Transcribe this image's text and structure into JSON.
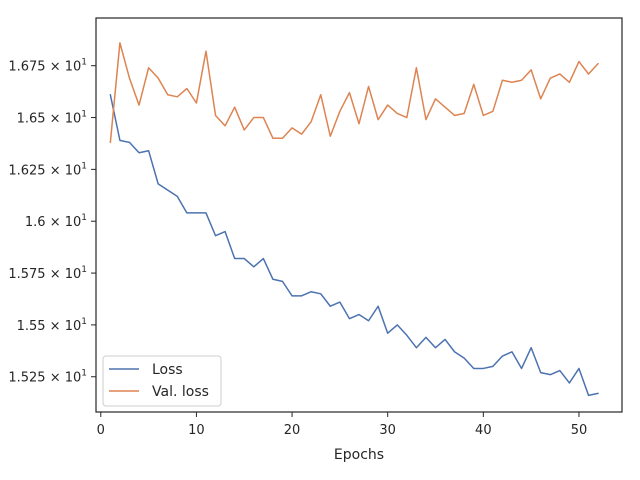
{
  "chart_data": {
    "type": "line",
    "title": "",
    "xlabel": "Epochs",
    "ylabel": "",
    "xlim": [
      -0.5,
      54.5
    ],
    "ylim": [
      15.08,
      16.98
    ],
    "x_ticks": [
      {
        "value": 0,
        "label": "0"
      },
      {
        "value": 10,
        "label": "10"
      },
      {
        "value": 20,
        "label": "20"
      },
      {
        "value": 30,
        "label": "30"
      },
      {
        "value": 40,
        "label": "40"
      },
      {
        "value": 50,
        "label": "50"
      }
    ],
    "y_ticks": [
      {
        "value": 15.25,
        "label": "1.525 × 10",
        "exp": "1"
      },
      {
        "value": 15.5,
        "label": "1.55 × 10",
        "exp": "1"
      },
      {
        "value": 15.75,
        "label": "1.575 × 10",
        "exp": "1"
      },
      {
        "value": 16.0,
        "label": "1.6 × 10",
        "exp": "1"
      },
      {
        "value": 16.25,
        "label": "1.625 × 10",
        "exp": "1"
      },
      {
        "value": 16.5,
        "label": "1.65 × 10",
        "exp": "1"
      },
      {
        "value": 16.75,
        "label": "1.675 × 10",
        "exp": "1"
      }
    ],
    "grid": false,
    "legend_position": "lower-left",
    "x": [
      1,
      2,
      3,
      4,
      5,
      6,
      7,
      8,
      9,
      10,
      11,
      12,
      13,
      14,
      15,
      16,
      17,
      18,
      19,
      20,
      21,
      22,
      23,
      24,
      25,
      26,
      27,
      28,
      29,
      30,
      31,
      32,
      33,
      34,
      35,
      36,
      37,
      38,
      39,
      40,
      41,
      42,
      43,
      44,
      45,
      46,
      47,
      48,
      49,
      50,
      51,
      52
    ],
    "series": [
      {
        "name": "Loss",
        "color": "#4c72b0",
        "values": [
          16.61,
          16.39,
          16.38,
          16.33,
          16.34,
          16.18,
          16.15,
          16.12,
          16.04,
          16.04,
          16.04,
          15.93,
          15.95,
          15.82,
          15.82,
          15.78,
          15.82,
          15.72,
          15.71,
          15.64,
          15.64,
          15.66,
          15.65,
          15.59,
          15.61,
          15.53,
          15.55,
          15.52,
          15.59,
          15.46,
          15.5,
          15.45,
          15.39,
          15.44,
          15.39,
          15.43,
          15.37,
          15.34,
          15.29,
          15.29,
          15.3,
          15.35,
          15.37,
          15.29,
          15.39,
          15.27,
          15.26,
          15.28,
          15.22,
          15.29,
          15.16,
          15.17
        ]
      },
      {
        "name": "Val. loss",
        "color": "#dd8452",
        "values": [
          16.38,
          16.86,
          16.69,
          16.56,
          16.74,
          16.69,
          16.61,
          16.6,
          16.64,
          16.57,
          16.82,
          16.51,
          16.46,
          16.55,
          16.44,
          16.5,
          16.5,
          16.4,
          16.4,
          16.45,
          16.42,
          16.48,
          16.61,
          16.41,
          16.53,
          16.62,
          16.47,
          16.65,
          16.49,
          16.56,
          16.52,
          16.5,
          16.74,
          16.49,
          16.59,
          16.55,
          16.51,
          16.52,
          16.66,
          16.51,
          16.53,
          16.68,
          16.67,
          16.68,
          16.73,
          16.59,
          16.69,
          16.71,
          16.67,
          16.77,
          16.71,
          16.76
        ]
      }
    ]
  }
}
